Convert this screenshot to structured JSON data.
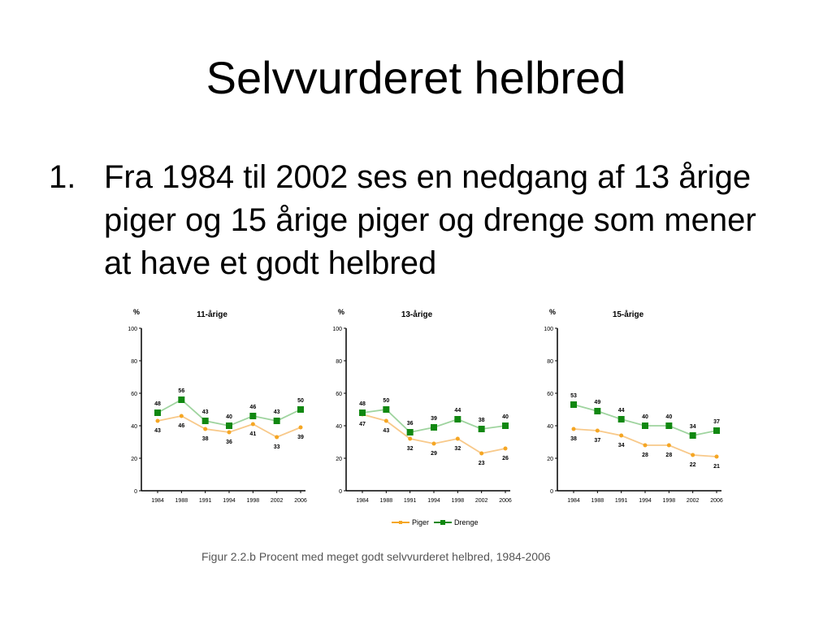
{
  "slide": {
    "title": "Selvvurderet helbred",
    "bullet_number": "1.",
    "bullet_text": "Fra 1984 til 2002 ses en nedgang af 13 årige piger og 15 årige piger og drenge som mener at have et godt helbred"
  },
  "legend": {
    "girls": "Piger",
    "boys": "Drenge"
  },
  "caption": "Figur 2.2.b  Procent med meget godt selvvurderet helbred, 1984-2006",
  "colors": {
    "girls": "#f5a623",
    "boys": "#118811",
    "girls_line": "#f8c98a",
    "boys_line": "#9fd49f"
  },
  "chart_data": [
    {
      "type": "line",
      "title": "11-årige",
      "ylabel": "%",
      "ylim": [
        0,
        100
      ],
      "yticks": [
        0,
        20,
        40,
        60,
        80,
        100
      ],
      "x": [
        "1984",
        "1988",
        "1991",
        "1994",
        "1998",
        "2002",
        "2006"
      ],
      "series": [
        {
          "name": "Piger",
          "values": [
            43,
            46,
            38,
            36,
            41,
            33,
            39
          ],
          "labels": [
            "43",
            "46",
            "38",
            "36",
            "41",
            "33",
            "39"
          ]
        },
        {
          "name": "Drenge",
          "values": [
            48,
            56,
            43,
            40,
            46,
            43,
            50
          ],
          "labels": [
            "48",
            "56",
            "43",
            "40",
            "46",
            "43",
            "50"
          ]
        }
      ]
    },
    {
      "type": "line",
      "title": "13-årige",
      "ylabel": "%",
      "ylim": [
        0,
        100
      ],
      "yticks": [
        0,
        20,
        40,
        60,
        80,
        100
      ],
      "x": [
        "1984",
        "1988",
        "1991",
        "1994",
        "1998",
        "2002",
        "2006"
      ],
      "series": [
        {
          "name": "Piger",
          "values": [
            47,
            43,
            32,
            29,
            32,
            23,
            26
          ],
          "labels": [
            "47",
            "43",
            "32",
            "29",
            "32",
            "23",
            "26"
          ]
        },
        {
          "name": "Drenge",
          "values": [
            48,
            50,
            36,
            39,
            44,
            38,
            40
          ],
          "labels": [
            "48",
            "50",
            "36",
            "39",
            "44",
            "38",
            "40"
          ]
        }
      ]
    },
    {
      "type": "line",
      "title": "15-årige",
      "ylabel": "%",
      "ylim": [
        0,
        100
      ],
      "yticks": [
        0,
        20,
        40,
        60,
        80,
        100
      ],
      "x": [
        "1984",
        "1988",
        "1991",
        "1994",
        "1998",
        "2002",
        "2006"
      ],
      "series": [
        {
          "name": "Piger",
          "values": [
            38,
            37,
            34,
            28,
            28,
            22,
            21
          ],
          "labels": [
            "38",
            "37",
            "34",
            "28",
            "28",
            "22",
            "21"
          ]
        },
        {
          "name": "Drenge",
          "values": [
            53,
            49,
            44,
            40,
            40,
            34,
            37
          ],
          "labels": [
            "53",
            "49",
            "44",
            "40",
            "40",
            "34",
            "37"
          ]
        }
      ]
    }
  ]
}
